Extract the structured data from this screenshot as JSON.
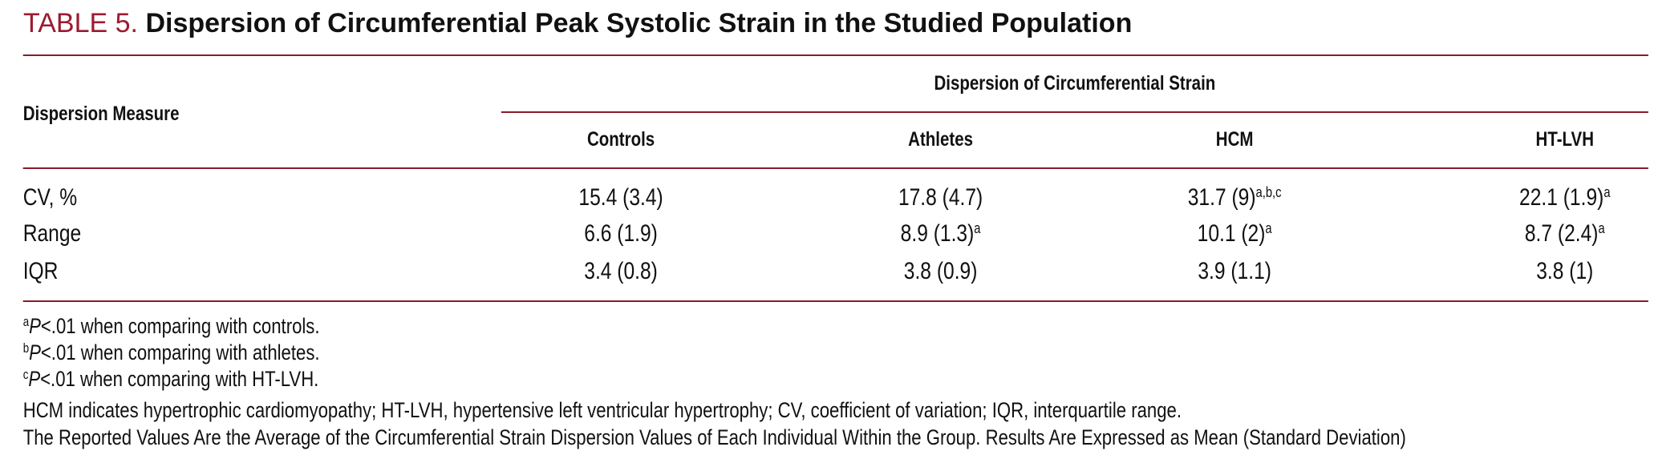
{
  "title": {
    "label": "TABLE 5.",
    "text": "Dispersion of Circumferential Peak Systolic Strain in the Studied Population"
  },
  "table": {
    "row_header": "Dispersion Measure",
    "group_header": "Dispersion of Circumferential Strain",
    "columns": [
      "Controls",
      "Athletes",
      "HCM",
      "HT-LVH"
    ],
    "rows": [
      {
        "label": "CV, %",
        "cells": [
          {
            "text": "15.4 (3.4)"
          },
          {
            "text": "17.8 (4.7)"
          },
          {
            "text": "31.7 (9)",
            "sup": "a,b,c"
          },
          {
            "text": "22.1 (1.9)",
            "sup": "a"
          }
        ]
      },
      {
        "label": "Range",
        "cells": [
          {
            "text": "6.6 (1.9)"
          },
          {
            "text": "8.9 (1.3)",
            "sup": "a"
          },
          {
            "text": "10.1 (2)",
            "sup": "a"
          },
          {
            "text": "8.7 (2.4)",
            "sup": "a"
          }
        ]
      },
      {
        "label": "IQR",
        "cells": [
          {
            "text": "3.4 (0.8)"
          },
          {
            "text": "3.8 (0.9)"
          },
          {
            "text": "3.9 (1.1)"
          },
          {
            "text": "3.8 (1)"
          }
        ]
      }
    ]
  },
  "footnotes": [
    {
      "mark": "a",
      "p": "P",
      "text": "<.01 when comparing with controls."
    },
    {
      "mark": "b",
      "p": "P",
      "text": "<.01 when comparing with athletes."
    },
    {
      "mark": "c",
      "p": "P",
      "text": "<.01 when comparing with HT-LVH."
    },
    {
      "text": "HCM indicates hypertrophic cardiomyopathy; HT-LVH, hypertensive left ventricular hypertrophy; CV, coefficient of variation; IQR, interquartile range."
    },
    {
      "text": "The Reported Values Are the Average of the Circumferential Strain Dispersion Values of Each Individual Within the Group. Results Are Expressed as Mean (Standard Deviation)"
    }
  ]
}
